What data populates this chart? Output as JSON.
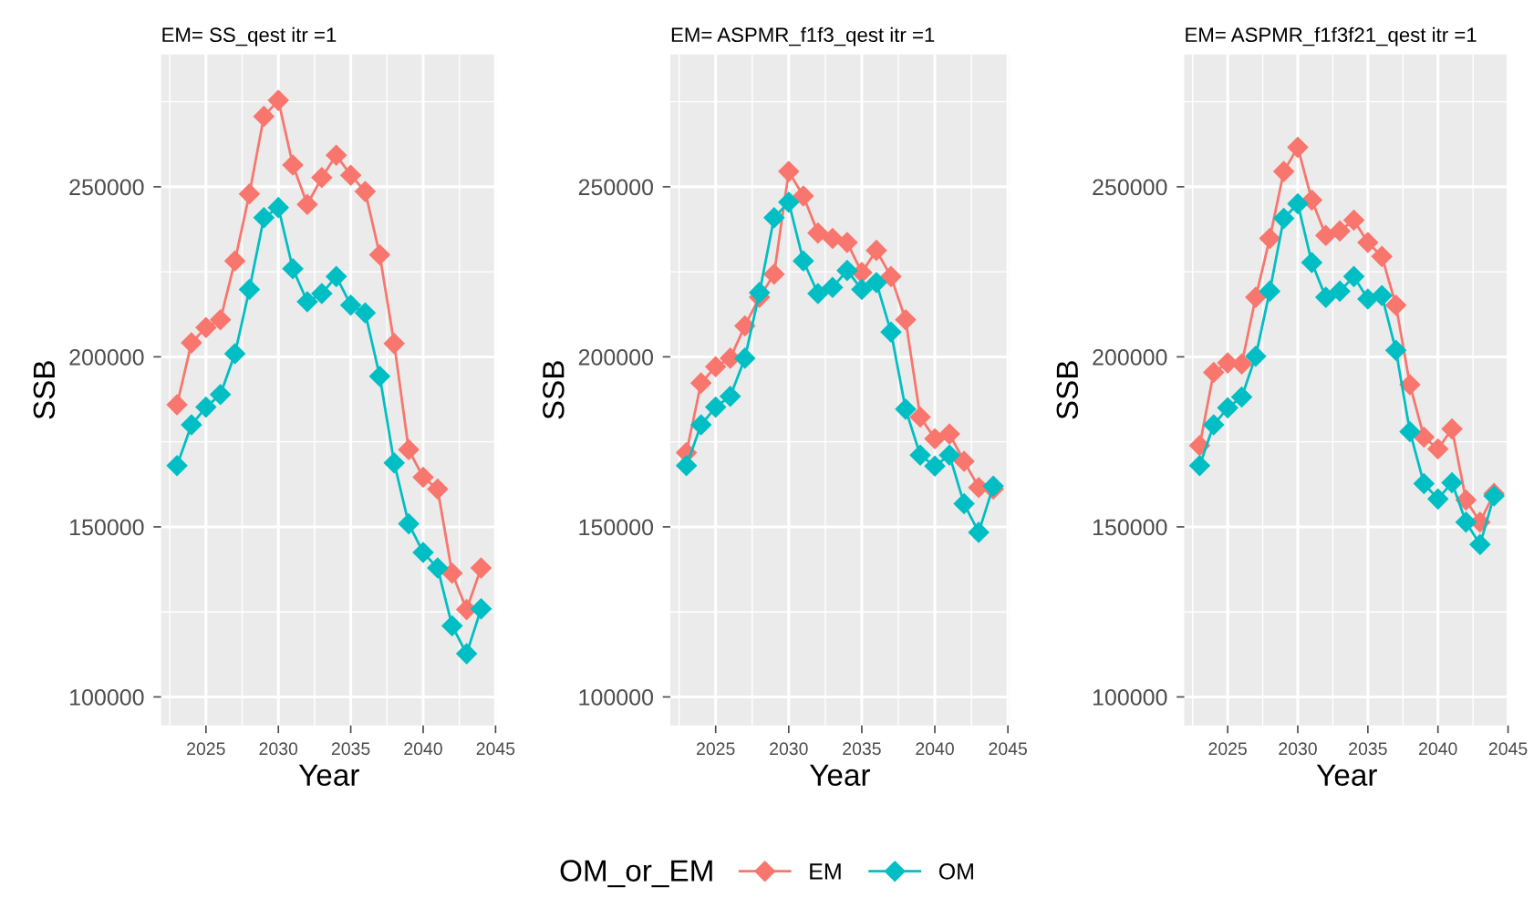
{
  "chart_data": [
    {
      "type": "line",
      "title": "EM= SS_qest itr =1",
      "xlabel": "Year",
      "ylabel": "SSB",
      "marker": "diamond",
      "grid": true,
      "legend": "bottom",
      "legend_title": "OM_or_EM",
      "x": [
        2023,
        2024,
        2025,
        2026,
        2027,
        2028,
        2029,
        2030,
        2031,
        2032,
        2033,
        2034,
        2035,
        2036,
        2037,
        2038,
        2039,
        2040,
        2041,
        2042,
        2043,
        2044
      ],
      "xlim": [
        2021.9,
        2045.1
      ],
      "xticks": [
        2025,
        2030,
        2035,
        2040,
        2045
      ],
      "ylim": [
        91600,
        288900
      ],
      "yticks": [
        100000,
        150000,
        200000,
        250000
      ],
      "series": [
        {
          "name": "EM",
          "color": "#f8766d",
          "values": [
            185900,
            204100,
            208600,
            210900,
            228200,
            247900,
            270700,
            275400,
            256400,
            244800,
            252700,
            259300,
            253400,
            248600,
            230000,
            203900,
            172700,
            164600,
            161100,
            136400,
            125700,
            137900
          ]
        },
        {
          "name": "OM",
          "color": "#00bfc4",
          "values": [
            168000,
            180000,
            185200,
            188900,
            200900,
            219800,
            240900,
            243900,
            225900,
            216200,
            218600,
            223600,
            215200,
            212900,
            194300,
            168800,
            150900,
            142500,
            137900,
            120900,
            112700,
            125900
          ]
        }
      ]
    },
    {
      "type": "line",
      "title": "EM= ASPMR_f1f3_qest itr =1",
      "xlabel": "Year",
      "ylabel": "SSB",
      "marker": "diamond",
      "grid": true,
      "x": [
        2023,
        2024,
        2025,
        2026,
        2027,
        2028,
        2029,
        2030,
        2031,
        2032,
        2033,
        2034,
        2035,
        2036,
        2037,
        2038,
        2039,
        2040,
        2041,
        2042,
        2043,
        2044
      ],
      "xlim": [
        2021.9,
        2045.1
      ],
      "xticks": [
        2025,
        2030,
        2035,
        2040,
        2045
      ],
      "ylim": [
        91600,
        288900
      ],
      "yticks": [
        100000,
        150000,
        200000,
        250000
      ],
      "series": [
        {
          "color": "#f8766d",
          "values": [
            171800,
            192300,
            197100,
            199600,
            209100,
            217500,
            224300,
            254500,
            247300,
            236400,
            234800,
            233600,
            224800,
            231300,
            223600,
            210900,
            182300,
            175900,
            177300,
            169300,
            161600,
            161100
          ]
        },
        {
          "color": "#00bfc4",
          "values": [
            168000,
            180000,
            185200,
            188400,
            199600,
            218900,
            240900,
            245500,
            228200,
            218600,
            220400,
            225400,
            219800,
            221800,
            207300,
            184600,
            171100,
            167900,
            171100,
            156800,
            148400,
            162000
          ]
        }
      ]
    },
    {
      "type": "line",
      "title": "EM= ASPMR_f1f3f21_qest itr =1",
      "xlabel": "Year",
      "ylabel": "SSB",
      "marker": "diamond",
      "grid": true,
      "x": [
        2023,
        2024,
        2025,
        2026,
        2027,
        2028,
        2029,
        2030,
        2031,
        2032,
        2033,
        2034,
        2035,
        2036,
        2037,
        2038,
        2039,
        2040,
        2041,
        2042,
        2043,
        2044
      ],
      "xlim": [
        2021.9,
        2045.1
      ],
      "xticks": [
        2025,
        2030,
        2035,
        2040,
        2045
      ],
      "ylim": [
        91600,
        288900
      ],
      "yticks": [
        100000,
        150000,
        200000,
        250000
      ],
      "series": [
        {
          "color": "#f8766d",
          "values": [
            173900,
            195400,
            198200,
            197900,
            217500,
            234800,
            254500,
            261600,
            246100,
            235700,
            237000,
            240200,
            233600,
            229500,
            215200,
            191800,
            176400,
            172900,
            178800,
            157900,
            151400,
            159800
          ]
        },
        {
          "color": "#00bfc4",
          "values": [
            168000,
            180000,
            185000,
            188200,
            200200,
            219300,
            240700,
            245000,
            227700,
            217500,
            219300,
            223600,
            217000,
            218000,
            201900,
            178000,
            162700,
            158200,
            163000,
            151400,
            144800,
            159100
          ]
        }
      ]
    }
  ]
}
